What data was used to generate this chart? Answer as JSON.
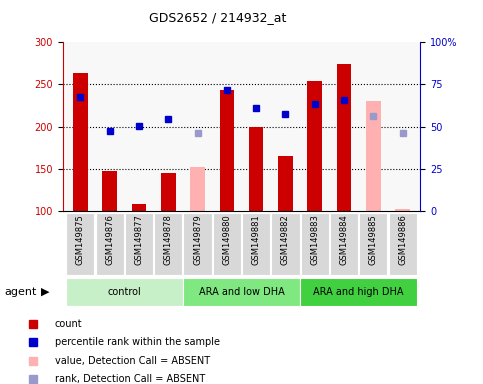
{
  "title": "GDS2652 / 214932_at",
  "samples": [
    "GSM149875",
    "GSM149876",
    "GSM149877",
    "GSM149878",
    "GSM149879",
    "GSM149880",
    "GSM149881",
    "GSM149882",
    "GSM149883",
    "GSM149884",
    "GSM149885",
    "GSM149886"
  ],
  "bar_values": [
    263,
    148,
    109,
    145,
    null,
    244,
    200,
    165,
    254,
    274,
    null,
    null
  ],
  "bar_absent_values": [
    null,
    null,
    null,
    null,
    152,
    null,
    null,
    null,
    null,
    null,
    231,
    103
  ],
  "blue_squares": [
    235,
    195,
    201,
    209,
    null,
    244,
    222,
    215,
    227,
    232,
    null,
    null
  ],
  "blue_absent_squares": [
    null,
    null,
    null,
    null,
    193,
    null,
    null,
    null,
    null,
    null,
    213,
    193
  ],
  "groups": [
    {
      "label": "control",
      "start": 0,
      "end": 3,
      "color": "#c8f0c8"
    },
    {
      "label": "ARA and low DHA",
      "start": 4,
      "end": 7,
      "color": "#80e880"
    },
    {
      "label": "ARA and high DHA",
      "start": 8,
      "end": 11,
      "color": "#40d040"
    }
  ],
  "ylim_left": [
    100,
    300
  ],
  "ylim_right": [
    0,
    100
  ],
  "yticks_left": [
    100,
    150,
    200,
    250,
    300
  ],
  "yticks_right": [
    0,
    25,
    50,
    75,
    100
  ],
  "bar_color": "#cc0000",
  "bar_absent_color": "#ffb0b0",
  "blue_color": "#0000cc",
  "blue_absent_color": "#9999cc",
  "legend_items": [
    {
      "color": "#cc0000",
      "label": "count"
    },
    {
      "color": "#0000cc",
      "label": "percentile rank within the sample"
    },
    {
      "color": "#ffb0b0",
      "label": "value, Detection Call = ABSENT"
    },
    {
      "color": "#9999cc",
      "label": "rank, Detection Call = ABSENT"
    }
  ],
  "agent_label": "agent",
  "background_color": "#ffffff"
}
